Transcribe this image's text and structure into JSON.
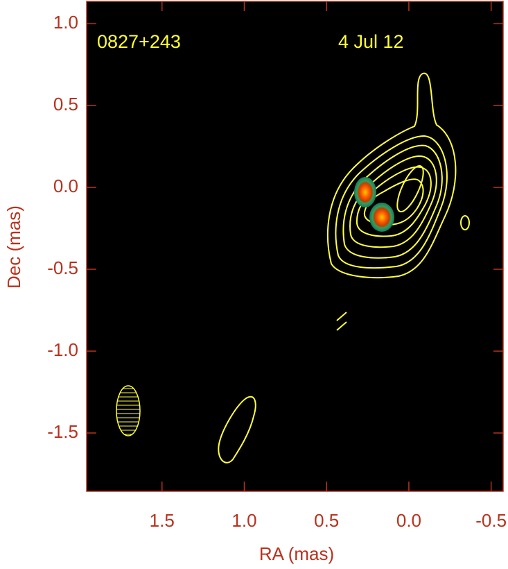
{
  "chart_data": {
    "type": "contour-map",
    "source_label": "0827+243",
    "date_label": "4 Jul 12",
    "xlabel": "RA (mas)",
    "ylabel": "Dec (mas)",
    "xlim": [
      1.958,
      -0.573
    ],
    "ylim": [
      -1.856,
      1.136
    ],
    "xticks": [
      1.5,
      {
        "value": 1,
        "label": "1.0"
      },
      0.5,
      {
        "value": 0,
        "label": "0.0"
      },
      -0.5
    ],
    "yticks": [
      {
        "value": 1,
        "label": "1.0"
      },
      0.5,
      {
        "value": 0,
        "label": "0.0"
      },
      -0.5,
      {
        "value": -1,
        "label": "-1.0"
      },
      -1.5
    ],
    "axis_color": "#b8321e",
    "label_color": "#ffff33"
  }
}
